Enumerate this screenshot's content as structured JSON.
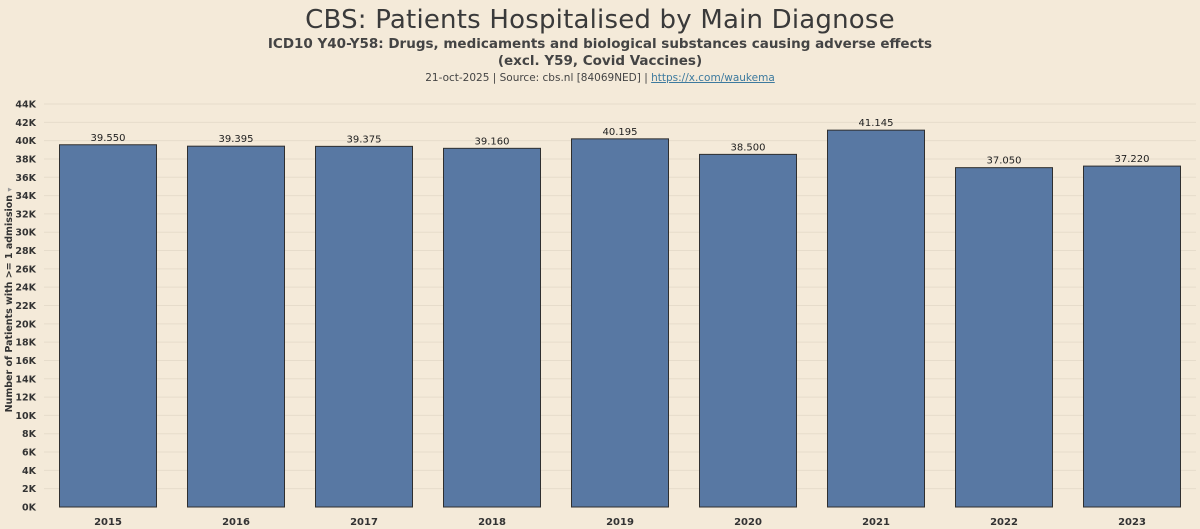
{
  "chart_data": {
    "type": "bar",
    "title": "CBS: Patients Hospitalised by Main Diagnose",
    "subtitle_line1": "ICD10 Y40-Y58: Drugs, medicaments and biological substances causing adverse effects",
    "subtitle_line2": "(excl. Y59, Covid Vaccines)",
    "source_text": "21-oct-2025 | Source: cbs.nl [84069NED] |",
    "source_link": "https://x.com/waukema",
    "xlabel": "",
    "ylabel": "Number of Patients with >= 1 admission",
    "ylabel_marker": "▾",
    "categories": [
      "2015",
      "2016",
      "2017",
      "2018",
      "2019",
      "2020",
      "2021",
      "2022",
      "2023"
    ],
    "values": [
      39550,
      39395,
      39375,
      39160,
      40195,
      38500,
      41145,
      37050,
      37220
    ],
    "value_labels": [
      "39.550",
      "39.395",
      "39.375",
      "39.160",
      "40.195",
      "38.500",
      "41.145",
      "37.050",
      "37.220"
    ],
    "ylim": [
      0,
      44000
    ],
    "yticks": [
      0,
      2000,
      4000,
      6000,
      8000,
      10000,
      12000,
      14000,
      16000,
      18000,
      20000,
      22000,
      24000,
      26000,
      28000,
      30000,
      32000,
      34000,
      36000,
      38000,
      40000,
      42000,
      44000
    ],
    "ytick_labels": [
      "0K",
      "2K",
      "4K",
      "6K",
      "8K",
      "10K",
      "12K",
      "14K",
      "16K",
      "18K",
      "20K",
      "22K",
      "24K",
      "26K",
      "28K",
      "30K",
      "32K",
      "34K",
      "36K",
      "38K",
      "40K",
      "42K",
      "44K"
    ],
    "grid": true,
    "legend": "none",
    "bar_color": "#5878a3",
    "bar_edge_color": "#2f2f2f"
  }
}
